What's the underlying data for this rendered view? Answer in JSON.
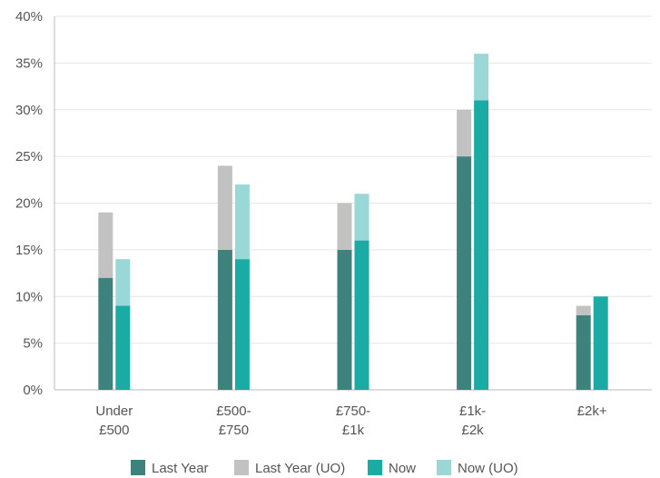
{
  "chart_data": {
    "type": "bar",
    "stacked_groups": true,
    "categories": [
      [
        "Under",
        "£500"
      ],
      [
        "£500-",
        "£750"
      ],
      [
        "£750-",
        "£1k"
      ],
      [
        "£1k-",
        "£2k"
      ],
      [
        "£2k+"
      ]
    ],
    "series": [
      {
        "name": "Last Year",
        "color": "#3d827d",
        "group": "last_year",
        "values": [
          12,
          15,
          15,
          25,
          8
        ]
      },
      {
        "name": "Last Year (UO)",
        "color": "#c2c2c2",
        "group": "last_year",
        "values": [
          7,
          9,
          5,
          5,
          1
        ]
      },
      {
        "name": "Now",
        "color": "#1aaba5",
        "group": "now",
        "values": [
          9,
          14,
          16,
          31,
          10
        ]
      },
      {
        "name": "Now (UO)",
        "color": "#9ad8d8",
        "group": "now",
        "values": [
          5,
          8,
          5,
          5,
          0
        ]
      }
    ],
    "y_ticks": [
      "0%",
      "5%",
      "10%",
      "15%",
      "20%",
      "25%",
      "30%",
      "35%",
      "40%"
    ],
    "ylim": [
      0,
      40
    ],
    "grid": true,
    "legend_position": "bottom"
  }
}
